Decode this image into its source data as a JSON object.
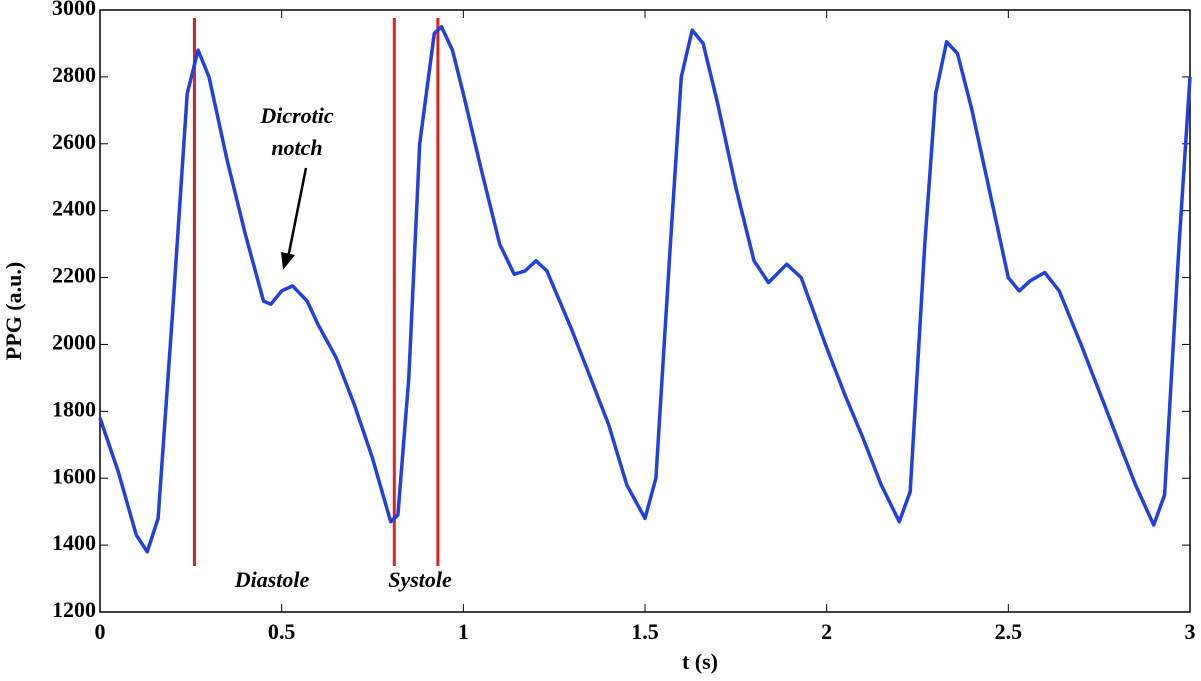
{
  "chart_data": {
    "type": "line",
    "xlabel": "t (s)",
    "ylabel": "PPG (a.u.)",
    "x": [
      0,
      0.05,
      0.1,
      0.13,
      0.16,
      0.2,
      0.24,
      0.27,
      0.3,
      0.35,
      0.4,
      0.45,
      0.47,
      0.5,
      0.53,
      0.57,
      0.6,
      0.65,
      0.7,
      0.75,
      0.8,
      0.82,
      0.85,
      0.88,
      0.92,
      0.94,
      0.97,
      1.0,
      1.05,
      1.1,
      1.14,
      1.17,
      1.2,
      1.23,
      1.3,
      1.35,
      1.4,
      1.45,
      1.5,
      1.53,
      1.57,
      1.6,
      1.63,
      1.66,
      1.7,
      1.75,
      1.8,
      1.84,
      1.89,
      1.93,
      2.0,
      2.05,
      2.1,
      2.15,
      2.2,
      2.23,
      2.27,
      2.3,
      2.33,
      2.36,
      2.4,
      2.45,
      2.5,
      2.53,
      2.56,
      2.6,
      2.64,
      2.7,
      2.75,
      2.8,
      2.85,
      2.9,
      2.93,
      2.97,
      3.0
    ],
    "series": [
      {
        "name": "PPG",
        "color": "#2040e0",
        "values": [
          1780,
          1620,
          1430,
          1380,
          1480,
          2100,
          2750,
          2880,
          2800,
          2550,
          2330,
          2130,
          2120,
          2160,
          2175,
          2130,
          2060,
          1960,
          1820,
          1660,
          1470,
          1490,
          1900,
          2600,
          2930,
          2950,
          2880,
          2750,
          2520,
          2300,
          2210,
          2220,
          2250,
          2220,
          2040,
          1900,
          1760,
          1580,
          1480,
          1600,
          2300,
          2800,
          2940,
          2900,
          2720,
          2470,
          2250,
          2185,
          2240,
          2200,
          1990,
          1850,
          1720,
          1580,
          1470,
          1560,
          2300,
          2750,
          2905,
          2870,
          2700,
          2450,
          2200,
          2160,
          2190,
          2215,
          2160,
          2000,
          1860,
          1720,
          1580,
          1460,
          1550,
          2300,
          2800
        ]
      }
    ],
    "markers": {
      "x": [
        0.26,
        0.81,
        0.93
      ],
      "color": "#e02020"
    },
    "annotations": [
      "Dicrotic",
      "notch",
      "Diastole",
      "Systole"
    ],
    "xlim": [
      0,
      3
    ],
    "ylim": [
      1200,
      3000
    ],
    "xticks": [
      0,
      0.5,
      1,
      1.5,
      2,
      2.5,
      3
    ],
    "yticks": [
      1200,
      1400,
      1600,
      1800,
      2000,
      2200,
      2400,
      2600,
      2800,
      3000
    ]
  }
}
